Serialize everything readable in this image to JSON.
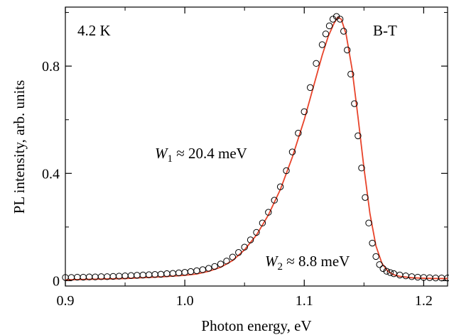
{
  "chart_data": {
    "type": "scatter",
    "title": "",
    "xlabel": "Photon energy, eV",
    "ylabel": "PL intensity, arb. units",
    "xlim": [
      0.9,
      1.22
    ],
    "ylim": [
      -0.02,
      1.02
    ],
    "x_ticks": [
      0.9,
      1.0,
      1.1,
      1.2
    ],
    "x_tick_labels": [
      "0.9",
      "1.0",
      "1.1",
      "1.2"
    ],
    "y_ticks": [
      0,
      0.4,
      0.8
    ],
    "y_tick_labels": [
      "0",
      "0.4",
      "0.8"
    ],
    "grid": false,
    "annotations": {
      "temperature": "4.2 K",
      "band": "B-T",
      "w1_symbol": "W",
      "w1_sub": "1",
      "w1_value": " ≈ 20.4 meV",
      "w2_symbol": "W",
      "w2_sub": "2",
      "w2_value": " ≈ 8.8 meV"
    },
    "series": [
      {
        "kind": "measured",
        "marker": "open-circle",
        "color": "#000000",
        "x": [
          0.9,
          0.905,
          0.91,
          0.915,
          0.92,
          0.925,
          0.93,
          0.935,
          0.94,
          0.945,
          0.95,
          0.955,
          0.96,
          0.965,
          0.97,
          0.975,
          0.98,
          0.985,
          0.99,
          0.995,
          1.0,
          1.005,
          1.01,
          1.015,
          1.02,
          1.025,
          1.03,
          1.035,
          1.04,
          1.045,
          1.05,
          1.055,
          1.06,
          1.065,
          1.07,
          1.075,
          1.08,
          1.085,
          1.09,
          1.095,
          1.1,
          1.105,
          1.11,
          1.115,
          1.118,
          1.121,
          1.124,
          1.127,
          1.13,
          1.133,
          1.136,
          1.139,
          1.142,
          1.145,
          1.148,
          1.151,
          1.154,
          1.157,
          1.16,
          1.163,
          1.166,
          1.169,
          1.172,
          1.175,
          1.18,
          1.185,
          1.19,
          1.195,
          1.2,
          1.205,
          1.21,
          1.215,
          1.22
        ],
        "y": [
          0.012,
          0.012,
          0.013,
          0.013,
          0.014,
          0.014,
          0.015,
          0.015,
          0.016,
          0.017,
          0.018,
          0.019,
          0.02,
          0.021,
          0.022,
          0.023,
          0.024,
          0.026,
          0.027,
          0.029,
          0.031,
          0.034,
          0.037,
          0.041,
          0.046,
          0.053,
          0.062,
          0.073,
          0.088,
          0.105,
          0.125,
          0.152,
          0.18,
          0.215,
          0.255,
          0.3,
          0.35,
          0.41,
          0.48,
          0.55,
          0.63,
          0.72,
          0.81,
          0.88,
          0.92,
          0.95,
          0.975,
          0.985,
          0.975,
          0.93,
          0.86,
          0.77,
          0.66,
          0.54,
          0.42,
          0.31,
          0.215,
          0.14,
          0.09,
          0.06,
          0.045,
          0.035,
          0.03,
          0.026,
          0.021,
          0.018,
          0.015,
          0.013,
          0.012,
          0.011,
          0.01,
          0.01,
          0.01
        ]
      },
      {
        "kind": "fit",
        "marker": "line",
        "color": "#e8432a",
        "x": [
          0.9,
          0.91,
          0.92,
          0.93,
          0.94,
          0.95,
          0.96,
          0.97,
          0.98,
          0.99,
          1.0,
          1.01,
          1.02,
          1.03,
          1.04,
          1.05,
          1.06,
          1.07,
          1.08,
          1.09,
          1.1,
          1.11,
          1.115,
          1.12,
          1.125,
          1.128,
          1.131,
          1.135,
          1.14,
          1.145,
          1.15,
          1.155,
          1.16,
          1.165,
          1.17,
          1.175,
          1.18,
          1.19,
          1.2,
          1.21,
          1.22
        ],
        "y": [
          0.003,
          0.004,
          0.005,
          0.006,
          0.007,
          0.008,
          0.01,
          0.012,
          0.014,
          0.017,
          0.02,
          0.025,
          0.035,
          0.05,
          0.075,
          0.115,
          0.17,
          0.245,
          0.34,
          0.46,
          0.6,
          0.76,
          0.84,
          0.91,
          0.96,
          0.982,
          0.975,
          0.92,
          0.79,
          0.61,
          0.42,
          0.25,
          0.13,
          0.065,
          0.035,
          0.022,
          0.016,
          0.011,
          0.009,
          0.008,
          0.008
        ]
      }
    ]
  }
}
